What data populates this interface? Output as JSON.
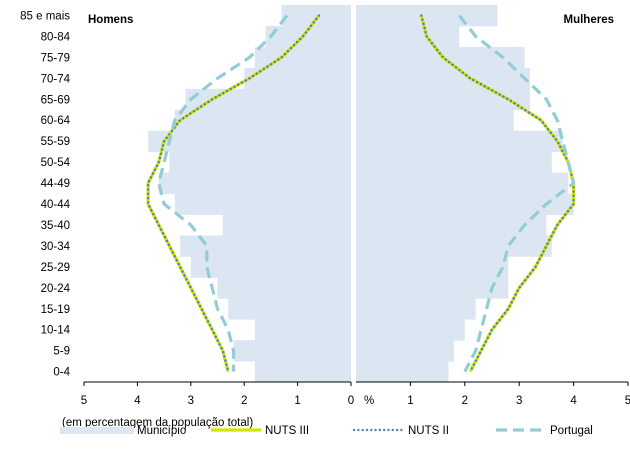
{
  "chart_data": {
    "type": "population-pyramid",
    "panels": [
      {
        "label": "Homens"
      },
      {
        "label": "Mulheres"
      }
    ],
    "categories": [
      "85 e mais",
      "80-84",
      "75-79",
      "70-74",
      "65-69",
      "60-64",
      "55-59",
      "50-54",
      "44-49",
      "40-44",
      "35-40",
      "30-34",
      "25-29",
      "20-24",
      "15-19",
      "10-14",
      "5-9",
      "0-4"
    ],
    "xlim": [
      0,
      5
    ],
    "x_ticks_left": [
      "5",
      "4",
      "3",
      "2",
      "1",
      "0"
    ],
    "x_ticks_right": [
      "1",
      "2",
      "3",
      "4",
      "5"
    ],
    "unit_label": "%",
    "note": "(em percentagem da população total)",
    "series": [
      {
        "name": "Município",
        "style": "bar",
        "color": "#dce6f2",
        "male": [
          1.3,
          1.6,
          1.8,
          2.0,
          3.1,
          3.3,
          3.8,
          3.4,
          3.6,
          3.3,
          2.4,
          3.2,
          3.0,
          2.5,
          2.3,
          1.8,
          2.2,
          1.8
        ],
        "female": [
          2.6,
          1.9,
          3.1,
          3.2,
          3.2,
          2.9,
          3.8,
          3.6,
          3.9,
          4.0,
          3.5,
          3.6,
          2.8,
          2.8,
          2.2,
          2.0,
          1.8,
          1.7
        ]
      },
      {
        "name": "NUTS III",
        "style": "solid",
        "color": "#d4e600",
        "male": [
          0.6,
          0.9,
          1.3,
          1.9,
          2.6,
          3.2,
          3.5,
          3.6,
          3.8,
          3.8,
          3.6,
          3.4,
          3.2,
          3.0,
          2.8,
          2.6,
          2.4,
          2.3
        ],
        "female": [
          1.2,
          1.3,
          1.6,
          2.1,
          2.8,
          3.4,
          3.7,
          3.9,
          4.0,
          4.0,
          3.7,
          3.5,
          3.3,
          3.0,
          2.8,
          2.5,
          2.3,
          2.1
        ]
      },
      {
        "name": "NUTS II",
        "style": "dotted",
        "color": "#4f81bd",
        "male": [
          0.6,
          0.9,
          1.3,
          1.9,
          2.6,
          3.2,
          3.5,
          3.6,
          3.8,
          3.8,
          3.6,
          3.4,
          3.2,
          3.0,
          2.8,
          2.6,
          2.4,
          2.3
        ],
        "female": [
          1.2,
          1.3,
          1.6,
          2.1,
          2.8,
          3.4,
          3.7,
          3.9,
          4.0,
          4.0,
          3.7,
          3.5,
          3.3,
          3.0,
          2.8,
          2.5,
          2.3,
          2.1
        ]
      },
      {
        "name": "Portugal",
        "style": "dashed",
        "color": "#92cdd6",
        "male": [
          1.2,
          1.5,
          1.9,
          2.5,
          3.0,
          3.3,
          3.4,
          3.5,
          3.6,
          3.5,
          3.0,
          2.7,
          2.7,
          2.6,
          2.5,
          2.3,
          2.2,
          2.2
        ],
        "female": [
          1.9,
          2.2,
          2.7,
          3.1,
          3.5,
          3.7,
          3.8,
          3.9,
          4.0,
          3.5,
          3.1,
          2.8,
          2.7,
          2.5,
          2.4,
          2.3,
          2.2,
          2.0
        ]
      }
    ],
    "grid": false,
    "legend_position": "bottom"
  }
}
